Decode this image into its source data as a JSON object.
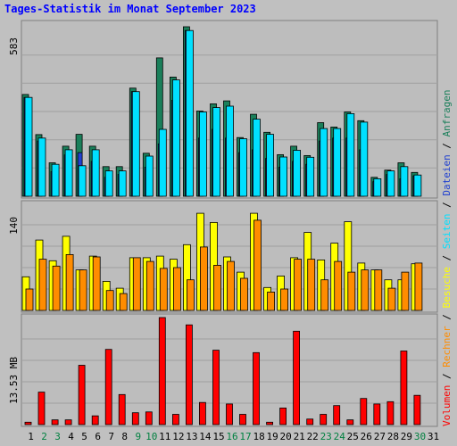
{
  "title": "Tages-Statistik im Monat September 2023",
  "colors": {
    "anfragen": "#1a7f5a",
    "dateien": "#2040d0",
    "seiten": "#00e0ff",
    "besuche": "#ffff00",
    "rechner": "#ff8c00",
    "volumen": "#ff0000",
    "weekday_label": "#000000",
    "weekend_label": "#008040"
  },
  "legend": {
    "volumen": "Volumen",
    "rechner": "Rechner",
    "besuche": "Besuche",
    "seiten": "Seiten",
    "dateien": "Dateien",
    "anfragen": "Anfragen",
    "separator": " / "
  },
  "chart_data": [
    {
      "type": "bar",
      "panel": "top",
      "ymax_label": "583",
      "ylim": [
        0,
        583
      ],
      "categories": [
        "1",
        "2",
        "3",
        "4",
        "5",
        "6",
        "7",
        "8",
        "9",
        "10",
        "11",
        "12",
        "13",
        "14",
        "15",
        "16",
        "17",
        "18",
        "19",
        "20",
        "21",
        "22",
        "23",
        "24",
        "25",
        "26",
        "27",
        "28",
        "29",
        "30",
        "31"
      ],
      "weekend": [
        "2",
        "3",
        "9",
        "10",
        "16",
        "17",
        "23",
        "24",
        "30"
      ],
      "series": [
        {
          "name": "Anfragen",
          "values": [
            350,
            212,
            115,
            172,
            213,
            172,
            102,
            102,
            372,
            148,
            476,
            410,
            583,
            293,
            318,
            328,
            202,
            282,
            220,
            143,
            172,
            140,
            253,
            238,
            290,
            260,
            65,
            90,
            115,
            82,
            0
          ]
        },
        {
          "name": "Dateien",
          "values": [
            340,
            190,
            85,
            142,
            150,
            120,
            65,
            75,
            360,
            100,
            180,
            330,
            570,
            200,
            230,
            200,
            150,
            160,
            130,
            100,
            120,
            110,
            190,
            200,
            200,
            160,
            50,
            75,
            60,
            70,
            0
          ]
        },
        {
          "name": "Seiten",
          "values": [
            340,
            200,
            110,
            160,
            105,
            160,
            87,
            87,
            360,
            138,
            230,
            400,
            570,
            290,
            305,
            310,
            198,
            265,
            213,
            135,
            158,
            134,
            233,
            233,
            284,
            255,
            60,
            87,
            102,
            73,
            0
          ]
        }
      ]
    },
    {
      "type": "bar",
      "panel": "middle",
      "ymax_label": "140",
      "ylim": [
        0,
        140
      ],
      "categories": [
        "1",
        "2",
        "3",
        "4",
        "5",
        "6",
        "7",
        "8",
        "9",
        "10",
        "11",
        "12",
        "13",
        "14",
        "15",
        "16",
        "17",
        "18",
        "19",
        "20",
        "21",
        "22",
        "23",
        "24",
        "25",
        "26",
        "27",
        "28",
        "29",
        "30",
        "31"
      ],
      "series": [
        {
          "name": "Besuche",
          "values": [
            44,
            92,
            65,
            97,
            53,
            71,
            38,
            29,
            69,
            69,
            71,
            67,
            86,
            127,
            115,
            70,
            50,
            127,
            30,
            45,
            69,
            102,
            66,
            88,
            116,
            62,
            53,
            40,
            40,
            61,
            0
          ]
        },
        {
          "name": "Rechner",
          "values": [
            28,
            67,
            58,
            73,
            53,
            70,
            26,
            22,
            69,
            64,
            55,
            56,
            40,
            83,
            59,
            64,
            42,
            118,
            24,
            28,
            67,
            67,
            40,
            64,
            50,
            53,
            53,
            29,
            50,
            62,
            0
          ]
        }
      ]
    },
    {
      "type": "bar",
      "panel": "bottom",
      "ymax_label": "13.53 MB",
      "ylim": [
        0,
        13.53
      ],
      "categories": [
        "1",
        "2",
        "3",
        "4",
        "5",
        "6",
        "7",
        "8",
        "9",
        "10",
        "11",
        "12",
        "13",
        "14",
        "15",
        "16",
        "17",
        "18",
        "19",
        "20",
        "21",
        "22",
        "23",
        "24",
        "25",
        "26",
        "27",
        "28",
        "29",
        "30",
        "31"
      ],
      "series": [
        {
          "name": "Volumen",
          "values": [
            0.3,
            4.1,
            0.6,
            0.6,
            7.5,
            1.1,
            9.5,
            3.8,
            1.5,
            1.6,
            13.53,
            1.3,
            12.6,
            2.8,
            9.4,
            2.6,
            1.3,
            9.1,
            0.3,
            2.1,
            11.8,
            0.7,
            1.3,
            2.4,
            0.6,
            3.3,
            2.6,
            2.9,
            9.3,
            3.7,
            0
          ]
        }
      ]
    }
  ]
}
